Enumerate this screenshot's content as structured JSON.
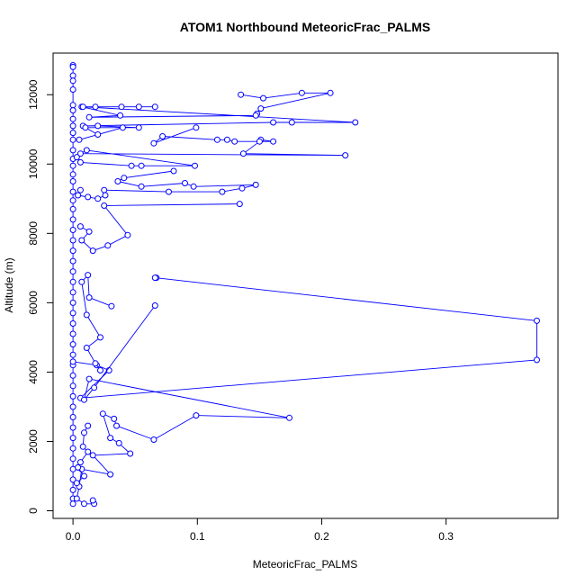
{
  "chart_data": {
    "type": "line",
    "title": "ATOM1 Northbound MeteoricFrac_PALMS",
    "xlabel": "MeteoricFrac_PALMS",
    "ylabel": "Altitude (m)",
    "xlim": [
      -0.016,
      0.39
    ],
    "ylim": [
      -220,
      13200
    ],
    "xticks": [
      0,
      0.1,
      0.2,
      0.3
    ],
    "xtick_labels": [
      "0.0",
      "0.1",
      "0.2",
      "0.3"
    ],
    "yticks": [
      0,
      2000,
      4000,
      6000,
      8000,
      10000,
      12000
    ],
    "ytick_labels": [
      "0",
      "2000",
      "4000",
      "6000",
      "8000",
      "10000",
      "12000"
    ],
    "grid": false,
    "legend": "none",
    "series": [
      {
        "color": "#0000ff",
        "marker": "open-circle",
        "points": [
          [
            0.0,
            12850
          ],
          [
            0.0,
            12800
          ],
          [
            0.0,
            12550
          ],
          [
            0.0,
            12400
          ],
          [
            0.0,
            12150
          ],
          [
            0.0,
            11700
          ],
          [
            0.0,
            11550
          ],
          [
            0.0,
            11300
          ],
          [
            0.0,
            11100
          ],
          [
            0.0,
            10900
          ],
          [
            0.0,
            10700
          ],
          [
            0.0,
            10400
          ],
          [
            0.0,
            10150
          ],
          [
            0.0,
            9950
          ],
          [
            0.0,
            9700
          ],
          [
            0.0,
            9500
          ],
          [
            0.0,
            9200
          ],
          [
            0.0,
            8950
          ],
          [
            0.0,
            8700
          ],
          [
            0.0,
            8400
          ],
          [
            0.0,
            8100
          ],
          [
            0.0,
            7800
          ],
          [
            0.0,
            7500
          ],
          [
            0.0,
            7200
          ],
          [
            0.0,
            6900
          ],
          [
            0.0,
            6600
          ],
          [
            0.0,
            6300
          ],
          [
            0.0,
            6000
          ],
          [
            0.0,
            5700
          ],
          [
            0.0,
            5400
          ],
          [
            0.0,
            5100
          ],
          [
            0.0,
            4800
          ],
          [
            0.0,
            4500
          ],
          [
            0.0,
            4200
          ],
          [
            0.0,
            3900
          ],
          [
            0.0,
            3600
          ],
          [
            0.0,
            3300
          ],
          [
            0.0,
            3000
          ],
          [
            0.0,
            2700
          ],
          [
            0.0,
            2400
          ],
          [
            0.0,
            2100
          ],
          [
            0.0,
            1800
          ],
          [
            0.0,
            1500
          ],
          [
            0.0,
            1200
          ],
          [
            0.0,
            900
          ],
          [
            0.0,
            600
          ],
          [
            0.0,
            350
          ],
          [
            0.0,
            200
          ]
        ]
      },
      {
        "color": "#0000ff",
        "marker": "open-circle",
        "points": [
          [
            0.135,
            12000
          ],
          [
            0.153,
            11900
          ],
          [
            0.184,
            12050
          ],
          [
            0.207,
            12050
          ],
          [
            0.151,
            11600
          ],
          [
            0.148,
            11450
          ],
          [
            0.147,
            11400
          ],
          [
            0.013,
            11350
          ],
          [
            0.038,
            11400
          ],
          [
            0.007,
            11650
          ],
          [
            0.018,
            11650
          ],
          [
            0.039,
            11650
          ],
          [
            0.053,
            11650
          ],
          [
            0.066,
            11650
          ],
          [
            0.008,
            11650
          ],
          [
            0.227,
            11200
          ],
          [
            0.176,
            11200
          ],
          [
            0.161,
            11200
          ],
          [
            0.008,
            11100
          ],
          [
            0.02,
            11100
          ],
          [
            0.053,
            11050
          ],
          [
            0.01,
            11050
          ],
          [
            0.02,
            10850
          ],
          [
            0.04,
            11050
          ],
          [
            0.005,
            10700
          ]
        ]
      },
      {
        "color": "#0000ff",
        "marker": "open-circle",
        "points": [
          [
            0.099,
            11050
          ],
          [
            0.065,
            10600
          ],
          [
            0.072,
            10800
          ],
          [
            0.116,
            10700
          ],
          [
            0.124,
            10700
          ],
          [
            0.13,
            10650
          ],
          [
            0.161,
            10650
          ],
          [
            0.151,
            10700
          ],
          [
            0.15,
            10650
          ],
          [
            0.137,
            10300
          ],
          [
            0.219,
            10250
          ],
          [
            0.006,
            10300
          ],
          [
            0.011,
            10400
          ],
          [
            0.098,
            9950
          ],
          [
            0.055,
            9950
          ],
          [
            0.047,
            9950
          ],
          [
            0.006,
            10050
          ],
          [
            0.003,
            10200
          ]
        ]
      },
      {
        "color": "#0000ff",
        "marker": "open-circle",
        "points": [
          [
            0.081,
            9800
          ],
          [
            0.041,
            9600
          ],
          [
            0.036,
            9500
          ],
          [
            0.055,
            9350
          ],
          [
            0.09,
            9450
          ],
          [
            0.097,
            9350
          ],
          [
            0.147,
            9400
          ],
          [
            0.136,
            9300
          ],
          [
            0.12,
            9200
          ],
          [
            0.077,
            9200
          ],
          [
            0.025,
            9250
          ],
          [
            0.026,
            9100
          ],
          [
            0.02,
            9000
          ],
          [
            0.012,
            9050
          ],
          [
            0.004,
            9100
          ],
          [
            0.006,
            9250
          ]
        ]
      },
      {
        "color": "#0000ff",
        "marker": "open-circle",
        "points": [
          [
            0.134,
            8850
          ],
          [
            0.025,
            8800
          ],
          [
            0.044,
            7950
          ],
          [
            0.028,
            7650
          ],
          [
            0.016,
            7500
          ],
          [
            0.007,
            7800
          ],
          [
            0.013,
            8050
          ],
          [
            0.006,
            8200
          ]
        ]
      },
      {
        "color": "#0000ff",
        "marker": "open-circle",
        "points": [
          [
            0.067,
            6720
          ],
          [
            0.066,
            6720
          ],
          [
            0.373,
            5480
          ],
          [
            0.373,
            4350
          ],
          [
            0.006,
            3250
          ],
          [
            0.029,
            4050
          ],
          [
            0.019,
            4200
          ],
          [
            0.0,
            4300
          ]
        ]
      },
      {
        "color": "#0000ff",
        "marker": "open-circle",
        "points": [
          [
            0.031,
            5900
          ],
          [
            0.013,
            6150
          ],
          [
            0.012,
            6800
          ],
          [
            0.007,
            6600
          ],
          [
            0.011,
            5650
          ],
          [
            0.022,
            5000
          ],
          [
            0.011,
            4700
          ],
          [
            0.018,
            4250
          ],
          [
            0.022,
            4050
          ]
        ]
      },
      {
        "color": "#0000ff",
        "marker": "open-circle",
        "points": [
          [
            0.066,
            5920
          ],
          [
            0.017,
            3550
          ],
          [
            0.009,
            3200
          ],
          [
            0.013,
            3800
          ],
          [
            0.174,
            2680
          ],
          [
            0.099,
            2750
          ],
          [
            0.065,
            2050
          ],
          [
            0.035,
            2450
          ],
          [
            0.033,
            2650
          ],
          [
            0.024,
            2800
          ],
          [
            0.03,
            2100
          ],
          [
            0.037,
            1950
          ],
          [
            0.046,
            1650
          ],
          [
            0.016,
            1600
          ],
          [
            0.03,
            1050
          ],
          [
            0.007,
            1200
          ],
          [
            0.005,
            700
          ],
          [
            0.003,
            350
          ],
          [
            0.009,
            200
          ],
          [
            0.017,
            200
          ],
          [
            0.016,
            300
          ]
        ]
      },
      {
        "color": "#0000ff",
        "marker": "open-circle",
        "points": [
          [
            0.012,
            2450
          ],
          [
            0.009,
            2250
          ],
          [
            0.008,
            1850
          ],
          [
            0.012,
            1700
          ],
          [
            0.006,
            1400
          ],
          [
            0.004,
            1250
          ],
          [
            0.009,
            1000
          ],
          [
            0.003,
            800
          ]
        ]
      }
    ]
  }
}
